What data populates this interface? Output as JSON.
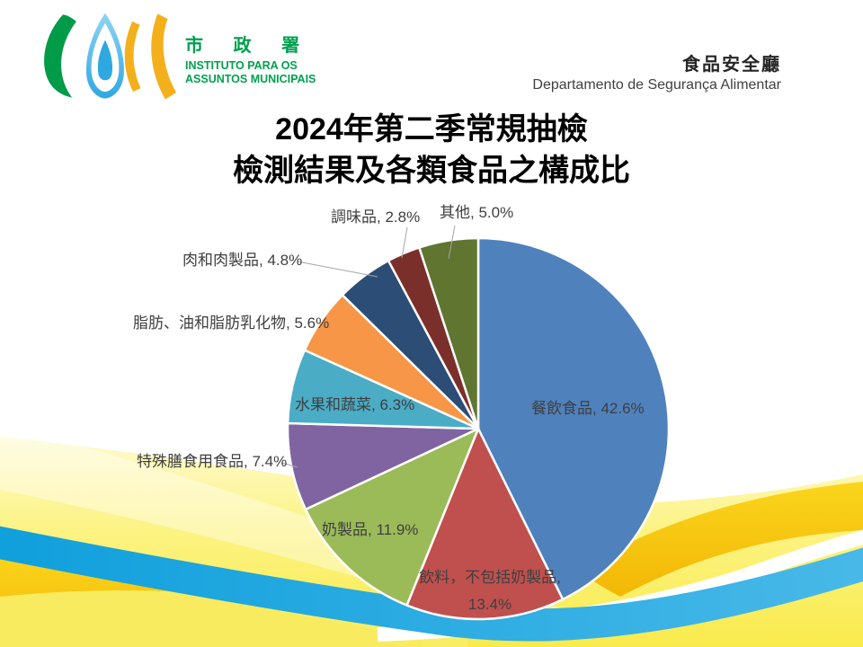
{
  "header": {
    "logo_cjk": "市 政 署",
    "logo_pt_line1": "INSTITUTO PARA OS",
    "logo_pt_line2": "ASSUNTOS MUNICIPAIS",
    "logo_colors": {
      "green": "#00A04E",
      "blue": "#2FA8E1",
      "yellow": "#F3B01C"
    },
    "department_cjk": "食品安全廳",
    "department_pt": "Departamento de Segurança Alimentar"
  },
  "title": {
    "line1": "2024年第二季常規抽檢",
    "line2": "檢測結果及各類食品之構成比"
  },
  "chart_data": {
    "type": "pie",
    "title": "2024年第二季常規抽檢檢測結果及各類食品之構成比",
    "unit": "percent",
    "start_angle_deg": 0,
    "direction": "clockwise",
    "label_color": "#3F3F3F",
    "leader_line_color": "#A6A6A6",
    "slices": [
      {
        "name": "餐飲食品",
        "value": 42.6,
        "color": "#4F81BD",
        "lines": [
          "餐飲食品, 42.6%"
        ]
      },
      {
        "name": "飲料，不包括奶製品",
        "value": 13.4,
        "color": "#C0504D",
        "lines": [
          "飲料，不包括奶製品,",
          "13.4%"
        ]
      },
      {
        "name": "奶製品",
        "value": 11.9,
        "color": "#9BBB59",
        "lines": [
          "奶製品, 11.9%"
        ]
      },
      {
        "name": "特殊膳食用食品",
        "value": 7.4,
        "color": "#8064A2",
        "lines": [
          "特殊膳食用食品, 7.4%"
        ]
      },
      {
        "name": "水果和蔬菜",
        "value": 6.3,
        "color": "#4BACC6",
        "lines": [
          "水果和蔬菜, 6.3%"
        ]
      },
      {
        "name": "脂肪、油和脂肪乳化物",
        "value": 5.6,
        "color": "#F79646",
        "lines": [
          "脂肪、油和脂肪乳化物, 5.6%"
        ]
      },
      {
        "name": "肉和肉製品",
        "value": 4.8,
        "color": "#2C4D75",
        "lines": [
          "肉和肉製品, 4.8%"
        ]
      },
      {
        "name": "調味品",
        "value": 2.8,
        "color": "#7B2F2B",
        "lines": [
          "調味品, 2.8%"
        ]
      },
      {
        "name": "其他",
        "value": 5.0,
        "color": "#5F7530",
        "lines": [
          "其他, 5.0%"
        ]
      }
    ]
  },
  "background_palette": {
    "base": "#FFFFFF",
    "yellow_pale": "#FEF9C2",
    "yellow": "#FAEC55",
    "gold": "#F6C216",
    "gold_deep": "#F2B705",
    "cyan": "#17A7E0",
    "cyan_light": "#49B9E8",
    "white_band": "#FFFFFF"
  }
}
